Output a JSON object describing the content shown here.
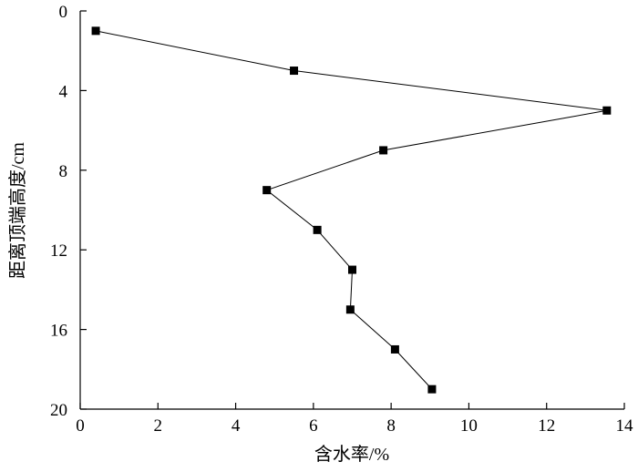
{
  "chart_data": {
    "type": "line",
    "xlabel": "含水率/%",
    "ylabel": "距离顶端高度/cm",
    "xlim": [
      0,
      14
    ],
    "ylim": [
      0,
      20
    ],
    "y_inverted": true,
    "x_ticks": [
      0,
      2,
      4,
      6,
      8,
      10,
      12,
      14
    ],
    "y_ticks": [
      0,
      4,
      8,
      12,
      16,
      20
    ],
    "grid": false,
    "marker": "square",
    "colors": {
      "line": "#000000",
      "marker": "#000000",
      "axis": "#000000"
    },
    "series": [
      {
        "points": [
          {
            "x": 0.4,
            "y": 1
          },
          {
            "x": 5.5,
            "y": 3
          },
          {
            "x": 13.55,
            "y": 5
          },
          {
            "x": 7.8,
            "y": 7
          },
          {
            "x": 4.8,
            "y": 9
          },
          {
            "x": 6.1,
            "y": 11
          },
          {
            "x": 7.0,
            "y": 13
          },
          {
            "x": 6.95,
            "y": 15
          },
          {
            "x": 8.1,
            "y": 17
          },
          {
            "x": 9.05,
            "y": 19
          }
        ]
      }
    ]
  }
}
